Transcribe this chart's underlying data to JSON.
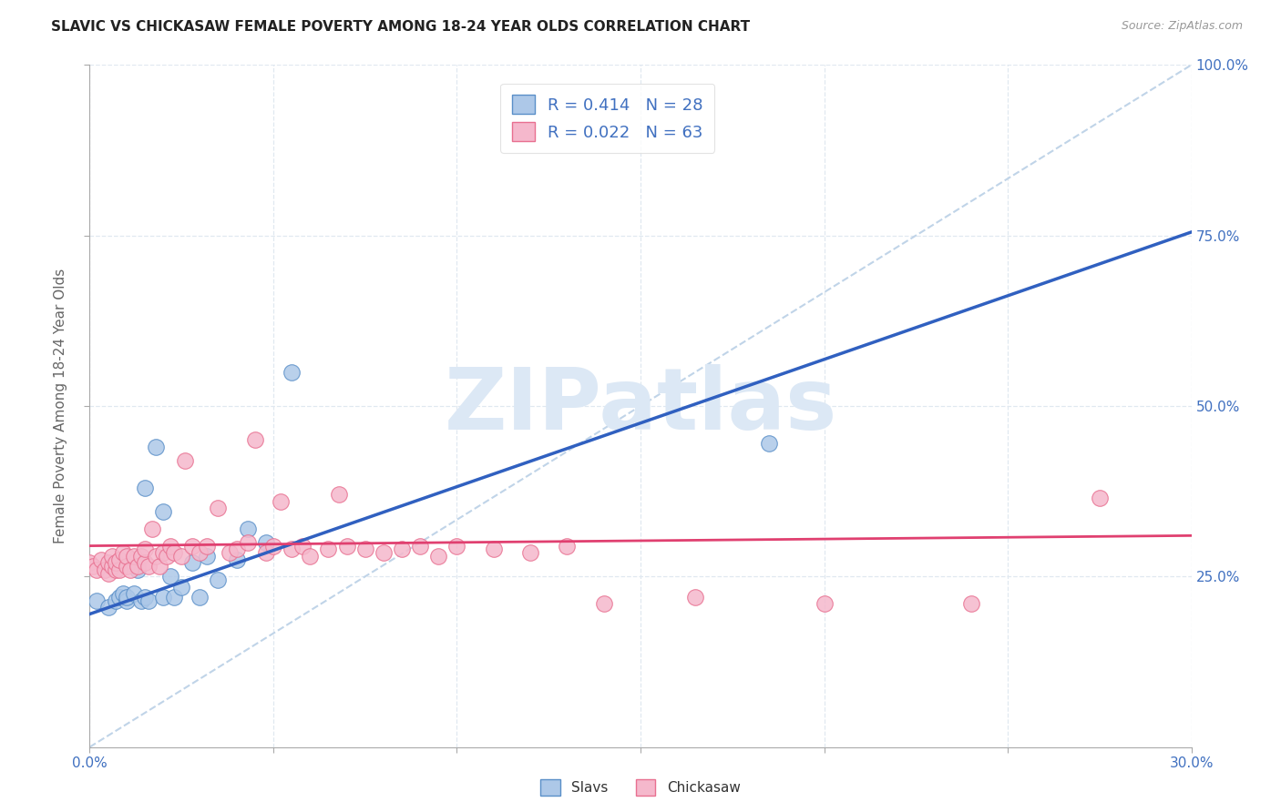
{
  "title": "SLAVIC VS CHICKASAW FEMALE POVERTY AMONG 18-24 YEAR OLDS CORRELATION CHART",
  "source": "Source: ZipAtlas.com",
  "ylabel": "Female Poverty Among 18-24 Year Olds",
  "xlim": [
    0.0,
    0.3
  ],
  "ylim": [
    0.0,
    1.0
  ],
  "xtick_vals": [
    0.0,
    0.05,
    0.1,
    0.15,
    0.2,
    0.25,
    0.3
  ],
  "xtick_labels_show": [
    "0.0%",
    "",
    "",
    "",
    "",
    "",
    "30.0%"
  ],
  "ytick_vals": [
    0.25,
    0.5,
    0.75,
    1.0
  ],
  "ytick_labels": [
    "25.0%",
    "50.0%",
    "75.0%",
    "100.0%"
  ],
  "slavs_R": 0.414,
  "slavs_N": 28,
  "chickasaw_R": 0.022,
  "chickasaw_N": 63,
  "slavs_color": "#adc8e8",
  "chickasaw_color": "#f5b8cc",
  "slavs_edge_color": "#5a8fc8",
  "chickasaw_edge_color": "#e87090",
  "slavs_line_color": "#3060c0",
  "chickasaw_line_color": "#e04070",
  "ref_line_color": "#c0d4e8",
  "watermark_color": "#dce8f5",
  "label_color": "#4070c0",
  "slavs_x": [
    0.002,
    0.005,
    0.007,
    0.008,
    0.009,
    0.01,
    0.01,
    0.012,
    0.013,
    0.014,
    0.015,
    0.015,
    0.016,
    0.018,
    0.02,
    0.02,
    0.022,
    0.023,
    0.025,
    0.028,
    0.03,
    0.032,
    0.035,
    0.04,
    0.043,
    0.048,
    0.055,
    0.185
  ],
  "slavs_y": [
    0.215,
    0.205,
    0.215,
    0.22,
    0.225,
    0.215,
    0.22,
    0.225,
    0.26,
    0.215,
    0.22,
    0.38,
    0.215,
    0.44,
    0.22,
    0.345,
    0.25,
    0.22,
    0.235,
    0.27,
    0.22,
    0.28,
    0.245,
    0.275,
    0.32,
    0.3,
    0.55,
    0.445
  ],
  "chickasaw_x": [
    0.0,
    0.001,
    0.002,
    0.003,
    0.004,
    0.005,
    0.005,
    0.006,
    0.006,
    0.007,
    0.007,
    0.008,
    0.008,
    0.009,
    0.01,
    0.01,
    0.011,
    0.012,
    0.013,
    0.014,
    0.015,
    0.015,
    0.016,
    0.017,
    0.018,
    0.019,
    0.02,
    0.021,
    0.022,
    0.023,
    0.025,
    0.026,
    0.028,
    0.03,
    0.032,
    0.035,
    0.038,
    0.04,
    0.043,
    0.045,
    0.048,
    0.05,
    0.052,
    0.055,
    0.058,
    0.06,
    0.065,
    0.068,
    0.07,
    0.075,
    0.08,
    0.085,
    0.09,
    0.095,
    0.1,
    0.11,
    0.12,
    0.13,
    0.14,
    0.165,
    0.2,
    0.24,
    0.275
  ],
  "chickasaw_y": [
    0.27,
    0.265,
    0.26,
    0.275,
    0.26,
    0.255,
    0.27,
    0.265,
    0.28,
    0.26,
    0.27,
    0.26,
    0.275,
    0.285,
    0.265,
    0.28,
    0.26,
    0.28,
    0.265,
    0.28,
    0.27,
    0.29,
    0.265,
    0.32,
    0.28,
    0.265,
    0.285,
    0.28,
    0.295,
    0.285,
    0.28,
    0.42,
    0.295,
    0.285,
    0.295,
    0.35,
    0.285,
    0.29,
    0.3,
    0.45,
    0.285,
    0.295,
    0.36,
    0.29,
    0.295,
    0.28,
    0.29,
    0.37,
    0.295,
    0.29,
    0.285,
    0.29,
    0.295,
    0.28,
    0.295,
    0.29,
    0.285,
    0.295,
    0.21,
    0.22,
    0.21,
    0.21,
    0.365
  ],
  "background_color": "#ffffff",
  "grid_color": "#e0e8f0",
  "slavs_line_x0": 0.0,
  "slavs_line_y0": 0.195,
  "slavs_line_x1": 0.3,
  "slavs_line_y1": 0.755,
  "chickasaw_line_x0": 0.0,
  "chickasaw_line_y0": 0.295,
  "chickasaw_line_x1": 0.3,
  "chickasaw_line_y1": 0.31
}
